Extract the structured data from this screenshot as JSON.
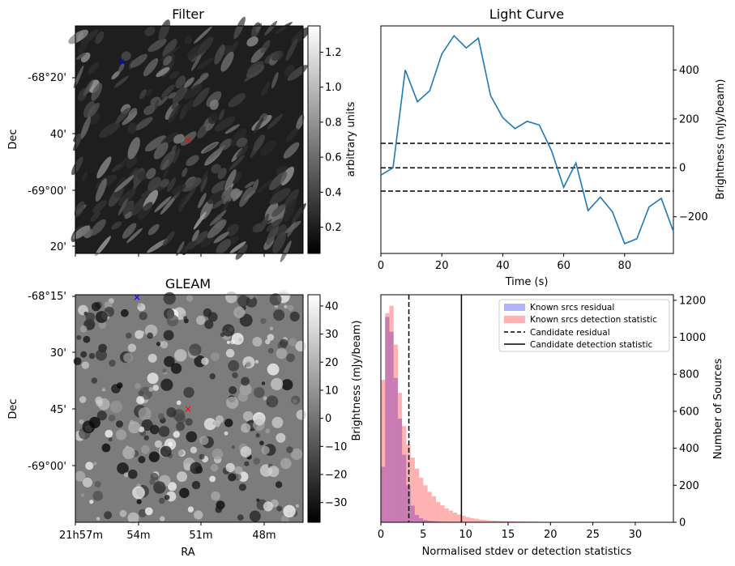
{
  "panels": {
    "filter": {
      "title": "Filter",
      "ylabel": "Dec",
      "yticks": [
        "-68°20'",
        "40'",
        "-69°00'",
        "20'"
      ],
      "colorbar_label": "arbitrary units",
      "colorbar_ticks": [
        "1.2",
        "1.0",
        "0.8",
        "0.6",
        "0.4",
        "0.2"
      ],
      "colorbar_range": [
        0.05,
        1.35
      ]
    },
    "gleam": {
      "title": "GLEAM",
      "ylabel": "Dec",
      "xlabel": "RA",
      "yticks": [
        "-68°15'",
        "30'",
        "45'",
        "-69°00'"
      ],
      "xticks": [
        "21h57m",
        "54m",
        "51m",
        "48m"
      ],
      "colorbar_label": "Brightness (mJy/beam)",
      "colorbar_ticks": [
        "40",
        "30",
        "20",
        "10",
        "0",
        "−10",
        "−20",
        "−30"
      ],
      "colorbar_range": [
        -37,
        44
      ]
    }
  },
  "chart_data": [
    {
      "type": "line",
      "title": "Light Curve",
      "xlabel": "Time (s)",
      "ylabel": "Brightness (mJy/beam)",
      "xlim": [
        0,
        96
      ],
      "ylim": [
        -350,
        580
      ],
      "xticks": [
        0,
        20,
        40,
        60,
        80
      ],
      "yticks": [
        -200,
        0,
        200,
        400
      ],
      "ytick_labels": [
        "−200",
        "0",
        "200",
        "400"
      ],
      "series": [
        {
          "name": "light curve",
          "color": "#1f77b4",
          "x": [
            0,
            4,
            8,
            12,
            16,
            20,
            24,
            28,
            32,
            36,
            40,
            44,
            48,
            52,
            56,
            60,
            64,
            68,
            72,
            76,
            80,
            84,
            88,
            92,
            96
          ],
          "y": [
            -30,
            0,
            400,
            270,
            315,
            465,
            540,
            490,
            530,
            295,
            205,
            160,
            190,
            175,
            70,
            -80,
            20,
            -175,
            -120,
            -180,
            -310,
            -290,
            -160,
            -125,
            -260
          ]
        }
      ],
      "hlines": [
        100,
        0,
        -95
      ],
      "hline_style": "dashed"
    },
    {
      "type": "bar",
      "title": "",
      "xlabel": "Normalised stdev or detection statistics",
      "ylabel": "Number of Sources",
      "xlim": [
        0,
        34.5
      ],
      "ylim": [
        0,
        1230
      ],
      "xticks": [
        0,
        5,
        10,
        15,
        20,
        25,
        30
      ],
      "yticks": [
        0,
        200,
        400,
        600,
        800,
        1000,
        1200
      ],
      "bin_width": 0.5,
      "series": [
        {
          "name": "Known srcs residual",
          "color": "#0000ff",
          "bin_start": 0,
          "values": [
            300,
            1110,
            1030,
            780,
            560,
            365,
            200,
            90,
            40,
            22,
            12,
            8,
            6,
            4,
            3,
            2,
            2,
            1,
            1,
            1,
            1,
            1,
            1,
            1,
            1
          ]
        },
        {
          "name": "Known srcs detection statistic",
          "color": "#ff0000",
          "bin_start": 0,
          "values": [
            770,
            1130,
            1170,
            960,
            700,
            520,
            420,
            350,
            290,
            240,
            200,
            165,
            140,
            110,
            92,
            75,
            63,
            52,
            42,
            35,
            28,
            23,
            19,
            15,
            13,
            11,
            9,
            8,
            7,
            6,
            5,
            5,
            4,
            4,
            3,
            3,
            3,
            2,
            2,
            2,
            2,
            2,
            2,
            1,
            1,
            1,
            1,
            1,
            1,
            1,
            1,
            1,
            1,
            1,
            1,
            1,
            1,
            1,
            1,
            1,
            1,
            1,
            1,
            1,
            1,
            1,
            1,
            1,
            1
          ]
        }
      ],
      "vlines": [
        {
          "name": "Candidate residual",
          "x": 3.3,
          "style": "dashed"
        },
        {
          "name": "Candidate detection statistic",
          "x": 9.5,
          "style": "solid"
        }
      ],
      "legend_position": "top-right",
      "left_axis_label": "Brightness (mJy/beam)"
    }
  ]
}
